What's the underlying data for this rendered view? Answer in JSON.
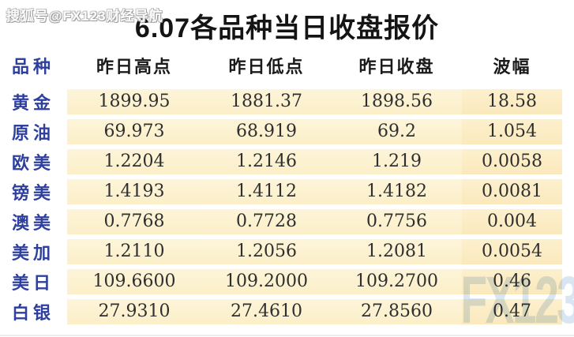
{
  "watermark_top": "搜狐号@FX123财经导航",
  "watermark_bottom": "FX123",
  "title": "6.07各品种当日收盘报价",
  "table": {
    "headers": [
      "品种",
      "昨日高点",
      "昨日低点",
      "昨日收盘",
      "波幅"
    ],
    "rows": [
      {
        "name": "黄金",
        "high": "1899.95",
        "low": "1881.37",
        "close": "1898.56",
        "range": "18.58"
      },
      {
        "name": "原油",
        "high": "69.973",
        "low": "68.919",
        "close": "69.2",
        "range": "1.054"
      },
      {
        "name": "欧美",
        "high": "1.2204",
        "low": "1.2146",
        "close": "1.219",
        "range": "0.0058"
      },
      {
        "name": "镑美",
        "high": "1.4193",
        "low": "1.4112",
        "close": "1.4182",
        "range": "0.0081"
      },
      {
        "name": "澳美",
        "high": "0.7768",
        "low": "0.7728",
        "close": "0.7756",
        "range": "0.004"
      },
      {
        "name": "美加",
        "high": "1.2110",
        "low": "1.2056",
        "close": "1.2081",
        "range": "0.0054"
      },
      {
        "name": "美日",
        "high": "109.6600",
        "low": "109.2000",
        "close": "109.2700",
        "range": "0.46"
      },
      {
        "name": "白银",
        "high": "27.9310",
        "low": "27.4610",
        "close": "27.8560",
        "range": "0.47"
      }
    ]
  },
  "colors": {
    "row_band": "#fcefc8",
    "range_band": "#fbe9bd",
    "label_blue": "#2e3f9e",
    "header_dark": "#1a1a1a",
    "number_text": "#2f2f2f",
    "watermark_blue": "#b9cfe8"
  }
}
